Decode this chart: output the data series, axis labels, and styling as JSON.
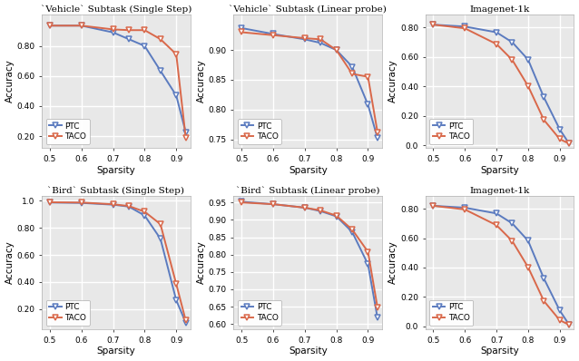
{
  "sparsity": [
    0.5,
    0.6,
    0.7,
    0.75,
    0.8,
    0.85,
    0.9,
    0.93
  ],
  "plots": [
    {
      "title": "`Vehicle` Subtask (Single Step)",
      "ylabel": "Accuracy",
      "xlabel": "Sparsity",
      "ptc": [
        0.935,
        0.935,
        0.89,
        0.845,
        0.8,
        0.635,
        0.47,
        0.225
      ],
      "taco": [
        0.935,
        0.935,
        0.91,
        0.905,
        0.905,
        0.845,
        0.745,
        0.19
      ],
      "ylim": [
        0.12,
        1.01
      ],
      "yticks": [
        0.2,
        0.4,
        0.6,
        0.8
      ],
      "legend_loc": "lower left"
    },
    {
      "title": "`Vehicle` Subtask (Linear probe)",
      "ylabel": "Accuracy",
      "xlabel": "Sparsity",
      "ptc": [
        0.937,
        0.927,
        0.918,
        0.912,
        0.9,
        0.872,
        0.808,
        0.752
      ],
      "taco": [
        0.93,
        0.925,
        0.92,
        0.918,
        0.9,
        0.86,
        0.855,
        0.762
      ],
      "ylim": [
        0.735,
        0.96
      ],
      "yticks": [
        0.75,
        0.8,
        0.85,
        0.9
      ],
      "legend_loc": "lower left"
    },
    {
      "title": "Imagenet-1k",
      "ylabel": "Accuracy",
      "xlabel": "Sparsity",
      "ptc": [
        0.82,
        0.807,
        0.768,
        0.7,
        0.582,
        0.325,
        0.108,
        0.01
      ],
      "taco": [
        0.82,
        0.795,
        0.688,
        0.58,
        0.402,
        0.172,
        0.042,
        0.01
      ],
      "ylim": [
        -0.02,
        0.89
      ],
      "yticks": [
        0.0,
        0.2,
        0.4,
        0.6,
        0.8
      ],
      "legend_loc": "lower left"
    },
    {
      "title": "`Bird` Subtask (Single Step)",
      "ylabel": "Accuracy",
      "xlabel": "Sparsity",
      "ptc": [
        0.988,
        0.985,
        0.972,
        0.958,
        0.892,
        0.72,
        0.265,
        0.1
      ],
      "taco": [
        0.99,
        0.988,
        0.975,
        0.962,
        0.92,
        0.828,
        0.385,
        0.115
      ],
      "ylim": [
        0.05,
        1.04
      ],
      "yticks": [
        0.2,
        0.4,
        0.6,
        0.8,
        1.0
      ],
      "legend_loc": "lower left"
    },
    {
      "title": "`Bird` Subtask (Linear probe)",
      "ylabel": "Accuracy",
      "xlabel": "Sparsity",
      "ptc": [
        0.952,
        0.945,
        0.935,
        0.925,
        0.91,
        0.865,
        0.772,
        0.618
      ],
      "taco": [
        0.95,
        0.945,
        0.935,
        0.927,
        0.912,
        0.872,
        0.808,
        0.648
      ],
      "ylim": [
        0.585,
        0.97
      ],
      "yticks": [
        0.6,
        0.65,
        0.7,
        0.75,
        0.8,
        0.85,
        0.9,
        0.95
      ],
      "legend_loc": "lower left"
    },
    {
      "title": "Imagenet-1k",
      "ylabel": "Accuracy",
      "xlabel": "Sparsity",
      "ptc": [
        0.82,
        0.807,
        0.768,
        0.7,
        0.582,
        0.325,
        0.108,
        0.01
      ],
      "taco": [
        0.82,
        0.795,
        0.688,
        0.58,
        0.402,
        0.172,
        0.042,
        0.01
      ],
      "ylim": [
        -0.02,
        0.89
      ],
      "yticks": [
        0.0,
        0.2,
        0.4,
        0.6,
        0.8
      ],
      "legend_loc": "lower left"
    }
  ],
  "ptc_color": "#5b7bbf",
  "taco_color": "#d9684a",
  "bg_color": "#e8e8e8",
  "grid_color": "white",
  "linewidth": 1.4,
  "markersize": 4.5,
  "xticks": [
    0.5,
    0.6,
    0.7,
    0.8,
    0.9
  ],
  "xlim": [
    0.475,
    0.945
  ]
}
